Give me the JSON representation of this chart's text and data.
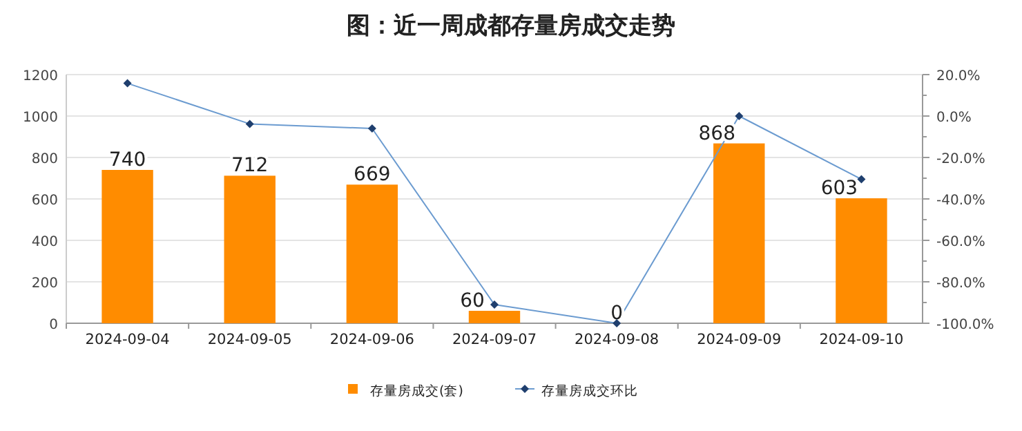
{
  "chart_data": {
    "type": "bar",
    "title": "图：近一周成都存量房成交走势",
    "categories": [
      "2024-09-04",
      "2024-09-05",
      "2024-09-06",
      "2024-09-07",
      "2024-09-08",
      "2024-09-09",
      "2024-09-10"
    ],
    "series": [
      {
        "name": "存量房成交(套)",
        "color": "#ff8c00",
        "values": [
          740,
          712,
          669,
          60,
          0,
          868,
          603
        ],
        "value_labels": [
          "740",
          "712",
          "669",
          "60",
          "0",
          "868",
          "603"
        ]
      },
      {
        "name": "存量房成交环比",
        "type": "line",
        "axis": "y2",
        "color": "#6b9bd0",
        "marker": "diamond",
        "values": [
          15.8,
          -3.8,
          -6.0,
          -91.0,
          -100.0,
          0.0,
          -30.5
        ]
      }
    ],
    "ylim": [
      0,
      1200
    ],
    "yticks": [
      0,
      200,
      400,
      600,
      800,
      1000,
      1200
    ],
    "y2lim": [
      -100,
      20
    ],
    "y2ticks": [
      {
        "value": -100,
        "label": "-100.0%"
      },
      {
        "value": -90,
        "label": null
      },
      {
        "value": -80,
        "label": "-80.0%"
      },
      {
        "value": -70,
        "label": null
      },
      {
        "value": -60,
        "label": "-60.0%"
      },
      {
        "value": -50,
        "label": null
      },
      {
        "value": -40,
        "label": "-40.0%"
      },
      {
        "value": -30,
        "label": null
      },
      {
        "value": -20,
        "label": "-20.0%"
      },
      {
        "value": -10,
        "label": null
      },
      {
        "value": 0,
        "label": "0.0%"
      },
      {
        "value": 10,
        "label": null
      },
      {
        "value": 20,
        "label": "20.0%"
      }
    ],
    "grid": "y",
    "legend": "bottom"
  }
}
